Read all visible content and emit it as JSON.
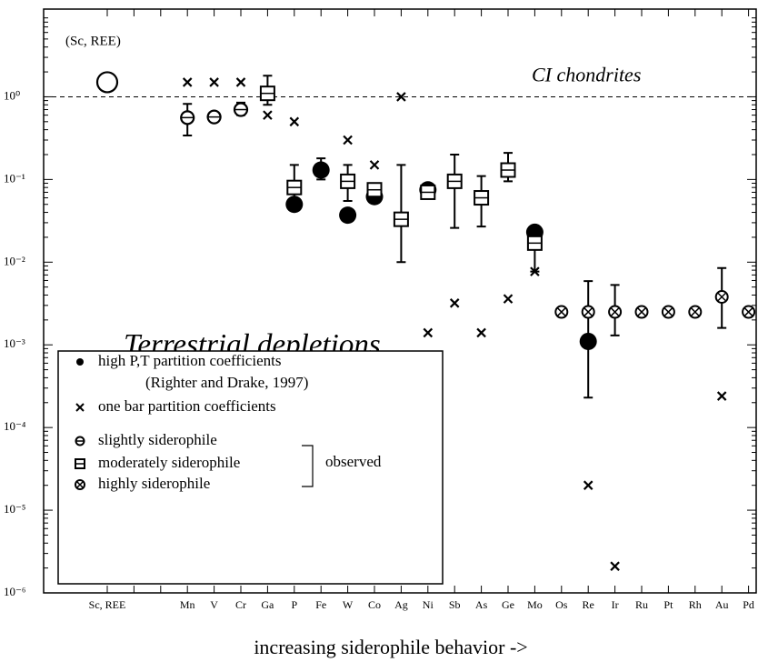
{
  "chart_data": {
    "type": "scatter",
    "title": "Terrestrial depletions",
    "x_label": "increasing siderophile behavior ->",
    "annotation": "(Sc, REE)",
    "reference_line": {
      "value": 1,
      "label": "CI chondrites"
    },
    "log_y": true,
    "ylim": [
      1e-06,
      11.5
    ],
    "yticks": [
      {
        "value": 1,
        "label": "10⁰"
      },
      {
        "value": 0.1,
        "label": "10⁻¹"
      },
      {
        "value": 0.01,
        "label": "10⁻²"
      },
      {
        "value": 0.001,
        "label": "10⁻³"
      },
      {
        "value": 0.0001,
        "label": "10⁻⁴"
      },
      {
        "value": 1e-05,
        "label": "10⁻⁵"
      },
      {
        "value": 1e-06,
        "label": "10⁻⁶"
      }
    ],
    "categories": [
      "Sc, REE",
      null,
      null,
      "Mn",
      "V",
      "Cr",
      "Ga",
      "P",
      "Fe",
      "W",
      "Co",
      "Ag",
      "Ni",
      "Sb",
      "As",
      "Ge",
      "Mo",
      "Os",
      "Re",
      "Ir",
      "Ru",
      "Pt",
      "Rh",
      "Au",
      "Pd"
    ],
    "legend_group_label": "observed",
    "series": [
      {
        "name": "high P,T partition coefficients",
        "name_note": "(Righter and Drake, 1997)",
        "marker": "filled-circle",
        "color": "#000000",
        "values": [
          null,
          null,
          null,
          null,
          null,
          null,
          null,
          0.05,
          0.13,
          0.037,
          0.062,
          null,
          0.075,
          null,
          null,
          null,
          0.023,
          null,
          0.0011,
          null,
          null,
          null,
          null,
          null,
          null
        ],
        "ylow": [
          null,
          null,
          null,
          null,
          null,
          null,
          null,
          null,
          0.1,
          null,
          null,
          null,
          null,
          null,
          null,
          null,
          null,
          null,
          0.00023,
          null,
          null,
          null,
          null,
          null,
          null
        ],
        "yhigh": [
          null,
          null,
          null,
          null,
          null,
          null,
          null,
          null,
          0.18,
          null,
          null,
          null,
          null,
          null,
          null,
          null,
          null,
          null,
          0.0059,
          null,
          null,
          null,
          null,
          null,
          null
        ]
      },
      {
        "name": "one bar partition coefficients",
        "marker": "x",
        "color": "#000000",
        "values": [
          null,
          null,
          null,
          1.5,
          1.5,
          1.5,
          0.6,
          0.5,
          null,
          0.3,
          0.15,
          1.0,
          0.0014,
          0.0032,
          0.0014,
          0.0036,
          0.0077,
          null,
          2e-05,
          2.1e-06,
          null,
          null,
          null,
          0.00024,
          null
        ]
      },
      {
        "name": "slightly siderophile",
        "marker": "slashed-circle",
        "color": "#000000",
        "values": [
          1.5,
          null,
          null,
          0.56,
          0.57,
          0.7,
          null,
          null,
          null,
          null,
          null,
          null,
          null,
          null,
          null,
          null,
          null,
          null,
          null,
          null,
          null,
          null,
          null,
          null,
          null
        ],
        "ylow": [
          null,
          null,
          null,
          0.34,
          null,
          0.6,
          null,
          null,
          null,
          null,
          null,
          null,
          null,
          null,
          null,
          null,
          null,
          null,
          null,
          null,
          null,
          null,
          null,
          null,
          null
        ],
        "yhigh": [
          null,
          null,
          null,
          0.82,
          null,
          0.85,
          null,
          null,
          null,
          null,
          null,
          null,
          null,
          null,
          null,
          null,
          null,
          null,
          null,
          null,
          null,
          null,
          null,
          null,
          null
        ]
      },
      {
        "name": "moderately siderophile",
        "marker": "boxed-square",
        "color": "#000000",
        "values": [
          null,
          null,
          null,
          null,
          null,
          null,
          1.1,
          0.08,
          null,
          0.095,
          0.075,
          0.033,
          0.07,
          0.095,
          0.06,
          0.13,
          0.017,
          null,
          null,
          null,
          null,
          null,
          null,
          null,
          null
        ],
        "ylow": [
          null,
          null,
          null,
          null,
          null,
          null,
          0.8,
          0.045,
          null,
          0.055,
          null,
          0.01,
          null,
          0.026,
          0.027,
          0.095,
          0.0077,
          null,
          null,
          null,
          null,
          null,
          null,
          null,
          null
        ],
        "yhigh": [
          null,
          null,
          null,
          null,
          null,
          null,
          1.8,
          0.15,
          null,
          0.15,
          null,
          0.15,
          null,
          0.2,
          0.11,
          0.21,
          0.022,
          null,
          null,
          null,
          null,
          null,
          null,
          null,
          null
        ]
      },
      {
        "name": "highly siderophile",
        "marker": "circled-x",
        "color": "#000000",
        "values": [
          null,
          null,
          null,
          null,
          null,
          null,
          null,
          null,
          null,
          null,
          null,
          null,
          null,
          null,
          null,
          null,
          null,
          0.0025,
          0.0025,
          0.0025,
          0.0025,
          0.0025,
          0.0025,
          0.0038,
          0.0025
        ],
        "ylow": [
          null,
          null,
          null,
          null,
          null,
          null,
          null,
          null,
          null,
          null,
          null,
          null,
          null,
          null,
          null,
          null,
          null,
          null,
          null,
          0.0013,
          null,
          null,
          null,
          0.0016,
          null
        ],
        "yhigh": [
          null,
          null,
          null,
          null,
          null,
          null,
          null,
          null,
          null,
          null,
          null,
          null,
          null,
          null,
          null,
          null,
          null,
          null,
          null,
          0.0053,
          null,
          null,
          null,
          0.0085,
          null
        ]
      }
    ]
  }
}
